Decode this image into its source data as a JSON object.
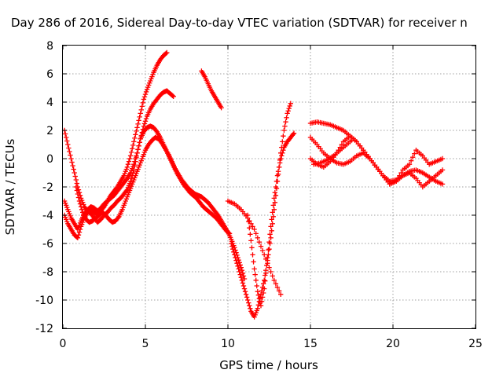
{
  "chart_data": {
    "type": "scatter",
    "title": "Day 286 of 2016, Sidereal Day-to-day VTEC variation (SDTVAR) for receiver n",
    "xlabel": "GPS time / hours",
    "ylabel": "SDTVAR / TECUs",
    "xlim": [
      0,
      25
    ],
    "ylim": [
      -12,
      8
    ],
    "xticks": [
      0,
      5,
      10,
      15,
      20,
      25
    ],
    "yticks": [
      -12,
      -10,
      -8,
      -6,
      -4,
      -2,
      0,
      2,
      4,
      6,
      8
    ],
    "grid": true,
    "marker": "plus",
    "color": "#ff0000",
    "series": [
      {
        "x": [
          0.1,
          0.3,
          0.5,
          0.7,
          0.9,
          1.1,
          1.3,
          1.5,
          1.7,
          1.9,
          2.1,
          2.3,
          2.5,
          2.7,
          2.9,
          3.1,
          3.3,
          3.5,
          3.7,
          3.9,
          4.1,
          4.3,
          4.5,
          4.7,
          4.9,
          5.1,
          5.3,
          5.5,
          5.7,
          5.9,
          6.1,
          6.3
        ],
        "y": [
          -4.0,
          -4.6,
          -5.0,
          -5.4,
          -5.6,
          -4.8,
          -4.2,
          -3.8,
          -3.6,
          -3.8,
          -4.0,
          -3.7,
          -3.4,
          -3.0,
          -2.6,
          -2.3,
          -2.0,
          -1.6,
          -1.2,
          -0.6,
          0.2,
          1.2,
          2.2,
          3.2,
          4.2,
          4.9,
          5.5,
          6.1,
          6.6,
          7.0,
          7.3,
          7.5
        ]
      },
      {
        "x": [
          0.1,
          0.3,
          0.5,
          0.7,
          0.9,
          1.1,
          1.3,
          1.5,
          1.7,
          1.9,
          2.1,
          2.3,
          2.5,
          2.7,
          2.9,
          3.1,
          3.3,
          3.5,
          3.7,
          3.9,
          4.1,
          4.3,
          4.5,
          4.7,
          4.9,
          5.1,
          5.3,
          5.5,
          5.7,
          5.9,
          6.1,
          6.3,
          6.5,
          6.7
        ],
        "y": [
          -3.0,
          -3.6,
          -4.2,
          -4.6,
          -5.0,
          -4.4,
          -3.9,
          -3.6,
          -3.4,
          -3.5,
          -3.7,
          -3.5,
          -3.2,
          -3.0,
          -2.8,
          -2.6,
          -2.3,
          -2.0,
          -1.7,
          -1.4,
          -1.0,
          -0.4,
          0.4,
          1.4,
          2.3,
          3.0,
          3.5,
          3.9,
          4.2,
          4.5,
          4.7,
          4.8,
          4.6,
          4.4
        ]
      },
      {
        "x": [
          0.1,
          0.3,
          0.5,
          0.7,
          0.9,
          1.1,
          1.3,
          1.5,
          1.7,
          1.9,
          2.1,
          2.3,
          2.5,
          2.7,
          2.9,
          3.1,
          3.3,
          3.5,
          3.7,
          3.9,
          4.1,
          4.3,
          4.5,
          4.7,
          4.9,
          5.1,
          5.3,
          5.5,
          5.7,
          5.9,
          6.1,
          6.3,
          6.5,
          6.7,
          6.9,
          7.1,
          7.3,
          7.5,
          7.7,
          7.9,
          8.1,
          8.3,
          8.5,
          8.7,
          8.9,
          9.1,
          9.3,
          9.5,
          9.7,
          9.9,
          10.1
        ],
        "y": [
          2.0,
          1.0,
          0.0,
          -1.0,
          -2.0,
          -2.8,
          -3.4,
          -3.7,
          -3.9,
          -4.2,
          -4.5,
          -4.3,
          -4.0,
          -3.8,
          -3.5,
          -3.3,
          -3.0,
          -2.8,
          -2.5,
          -2.2,
          -1.6,
          -0.8,
          0.4,
          1.4,
          1.9,
          2.2,
          2.3,
          2.2,
          1.9,
          1.5,
          1.0,
          0.5,
          0.0,
          -0.5,
          -1.0,
          -1.4,
          -1.8,
          -2.1,
          -2.4,
          -2.6,
          -2.8,
          -3.1,
          -3.4,
          -3.6,
          -3.8,
          -4.0,
          -4.2,
          -4.5,
          -4.8,
          -5.1,
          -5.3
        ]
      },
      {
        "x": [
          0.8,
          1.0,
          1.2,
          1.4,
          1.6,
          1.8,
          2.0,
          2.2,
          2.4,
          2.6,
          2.8,
          3.0,
          3.2,
          3.4,
          3.6,
          3.8,
          4.0,
          4.2,
          4.4,
          4.6,
          4.8,
          5.0,
          5.2,
          5.4,
          5.6,
          5.8,
          6.0,
          6.2,
          6.4,
          6.6,
          6.8,
          7.0,
          7.2,
          7.4,
          7.6,
          7.8,
          8.0,
          8.2,
          8.4,
          8.6,
          8.8,
          9.0,
          9.2,
          9.4,
          9.6,
          9.8,
          10.0,
          10.2,
          10.4,
          10.6,
          10.8,
          11.0
        ],
        "y": [
          -2.0,
          -3.0,
          -3.8,
          -4.3,
          -4.5,
          -4.4,
          -4.2,
          -4.0,
          -3.8,
          -4.0,
          -4.3,
          -4.5,
          -4.4,
          -4.1,
          -3.6,
          -3.0,
          -2.4,
          -1.8,
          -1.2,
          -0.6,
          0.0,
          0.6,
          1.0,
          1.3,
          1.5,
          1.4,
          1.1,
          0.7,
          0.3,
          -0.2,
          -0.7,
          -1.1,
          -1.5,
          -1.8,
          -2.1,
          -2.3,
          -2.5,
          -2.6,
          -2.7,
          -2.9,
          -3.1,
          -3.4,
          -3.7,
          -4.0,
          -4.4,
          -4.8,
          -5.2,
          -5.7,
          -6.3,
          -7.0,
          -7.7,
          -8.5
        ]
      },
      {
        "x": [
          8.4,
          8.6,
          8.8,
          9.0,
          9.2,
          9.4,
          9.6
        ],
        "y": [
          6.2,
          5.8,
          5.3,
          4.8,
          4.4,
          4.0,
          3.6
        ]
      },
      {
        "x": [
          10.2,
          10.4,
          10.6,
          10.8,
          11.0,
          11.2,
          11.4,
          11.6,
          11.8,
          12.0,
          12.2,
          12.4,
          12.6,
          12.8,
          13.0,
          13.2,
          13.4,
          13.6,
          13.8
        ],
        "y": [
          -6.0,
          -6.8,
          -7.6,
          -8.4,
          -9.2,
          -10.0,
          -10.8,
          -11.2,
          -10.6,
          -9.6,
          -8.6,
          -7.2,
          -5.6,
          -3.6,
          -1.6,
          0.4,
          2.0,
          3.2,
          3.9
        ]
      },
      {
        "x": [
          11.2,
          11.4,
          11.6,
          11.8,
          12.0,
          12.2,
          12.4,
          12.6,
          12.8,
          13.0,
          13.2,
          13.4,
          13.6,
          13.8,
          14.0
        ],
        "y": [
          -4.0,
          -5.8,
          -7.8,
          -9.4,
          -10.4,
          -9.2,
          -7.0,
          -4.8,
          -2.8,
          -1.2,
          0.0,
          0.8,
          1.2,
          1.5,
          1.8
        ]
      },
      {
        "x": [
          10.0,
          10.4,
          10.8,
          11.2,
          11.6,
          12.0,
          12.4,
          12.8,
          13.2
        ],
        "y": [
          -3.0,
          -3.2,
          -3.6,
          -4.2,
          -5.0,
          -6.2,
          -7.4,
          -8.6,
          -9.6
        ]
      },
      {
        "x": [
          15.0,
          15.4,
          15.8,
          16.2,
          16.6,
          17.0,
          17.4,
          17.8,
          18.2,
          18.6,
          19.0,
          19.4,
          19.8,
          20.2,
          20.6,
          21.0,
          21.4,
          21.8,
          22.2,
          22.6,
          23.0
        ],
        "y": [
          2.5,
          2.6,
          2.5,
          2.4,
          2.2,
          2.0,
          1.6,
          1.2,
          0.6,
          0.0,
          -0.6,
          -1.2,
          -1.6,
          -1.5,
          -1.2,
          -0.9,
          -0.8,
          -1.0,
          -1.3,
          -1.6,
          -1.8
        ]
      },
      {
        "x": [
          15.0,
          15.4,
          15.8,
          16.2,
          16.6,
          17.0,
          17.4,
          17.8,
          18.2,
          18.6,
          19.0,
          19.4,
          19.8,
          20.2,
          20.6,
          21.0,
          21.4,
          21.8,
          22.2,
          22.6,
          23.0
        ],
        "y": [
          0.0,
          -0.4,
          -0.6,
          -0.2,
          0.4,
          1.2,
          1.6,
          1.2,
          0.6,
          0.0,
          -0.6,
          -1.2,
          -1.8,
          -1.6,
          -1.2,
          -1.0,
          -1.4,
          -2.0,
          -1.6,
          -1.2,
          -0.8
        ]
      },
      {
        "x": [
          15.0,
          15.4,
          15.8,
          16.2,
          16.6,
          17.0,
          17.4,
          17.8,
          18.2,
          18.6,
          19.0,
          19.4,
          19.8,
          20.2,
          20.6,
          21.0,
          21.4,
          21.8,
          22.2,
          22.6,
          23.0
        ],
        "y": [
          1.5,
          1.0,
          0.4,
          0.0,
          -0.3,
          -0.4,
          -0.2,
          0.2,
          0.4,
          0.0,
          -0.6,
          -1.2,
          -1.8,
          -1.6,
          -0.8,
          -0.4,
          0.6,
          0.2,
          -0.4,
          -0.2,
          0.0
        ]
      },
      {
        "x": [
          15.2,
          15.6,
          16.0,
          16.4,
          16.8,
          17.2,
          17.6
        ],
        "y": [
          -0.4,
          -0.3,
          -0.1,
          0.2,
          0.6,
          1.0,
          1.4
        ]
      }
    ]
  }
}
